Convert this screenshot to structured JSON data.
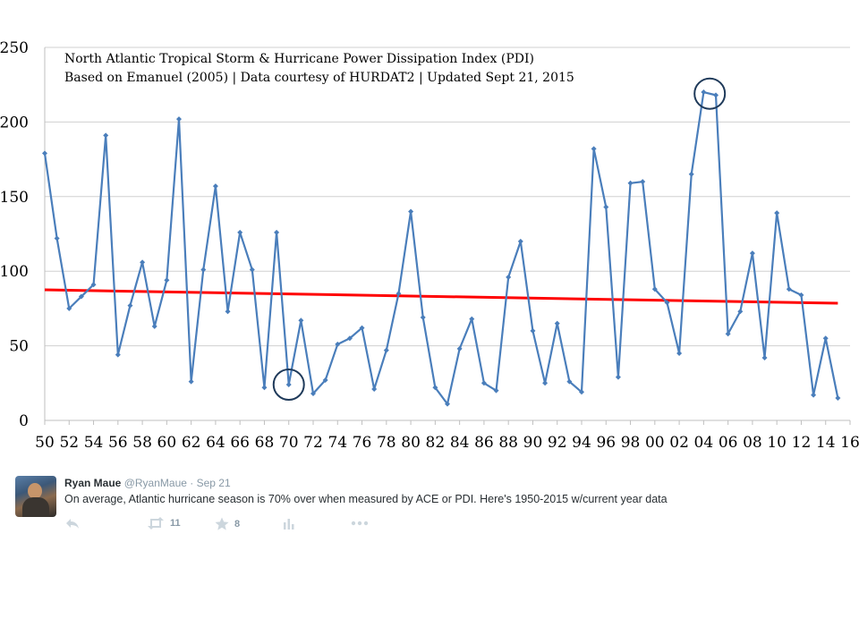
{
  "chart_data": {
    "type": "line",
    "title": "North Atlantic Tropical Storm & Hurricane Power Dissipation Index (PDI)",
    "subtitle": "Based on Emanuel (2005)  |  Data courtesy of HURDAT2 | Updated Sept 21, 2015",
    "xlabel": "",
    "ylabel": "",
    "ylim": [
      0,
      250
    ],
    "yticks": [
      0,
      50,
      100,
      150,
      200,
      250
    ],
    "xlim": [
      1950,
      2016
    ],
    "xtick_values": [
      1950,
      1952,
      1954,
      1956,
      1958,
      1960,
      1962,
      1964,
      1966,
      1968,
      1970,
      1972,
      1974,
      1976,
      1978,
      1980,
      1982,
      1984,
      1986,
      1988,
      1990,
      1992,
      1994,
      1996,
      1998,
      2000,
      2002,
      2004,
      2006,
      2008,
      2010,
      2012,
      2014,
      2016
    ],
    "xtick_labels": [
      "50",
      "52",
      "54",
      "56",
      "58",
      "60",
      "62",
      "64",
      "66",
      "68",
      "70",
      "72",
      "74",
      "76",
      "78",
      "80",
      "82",
      "84",
      "86",
      "88",
      "90",
      "92",
      "94",
      "96",
      "98",
      "00",
      "02",
      "04",
      "06",
      "08",
      "10",
      "12",
      "14",
      "16"
    ],
    "grid": "horizontal",
    "legend": "none",
    "series": [
      {
        "color": "#4a7ebb",
        "x": [
          1950,
          1951,
          1952,
          1953,
          1954,
          1955,
          1956,
          1957,
          1958,
          1959,
          1960,
          1961,
          1962,
          1963,
          1964,
          1965,
          1966,
          1967,
          1968,
          1969,
          1970,
          1971,
          1972,
          1973,
          1974,
          1975,
          1976,
          1977,
          1978,
          1979,
          1980,
          1981,
          1982,
          1983,
          1984,
          1985,
          1986,
          1987,
          1988,
          1989,
          1990,
          1991,
          1992,
          1993,
          1994,
          1995,
          1996,
          1997,
          1998,
          1999,
          2000,
          2001,
          2002,
          2003,
          2004,
          2005,
          2006,
          2007,
          2008,
          2009,
          2010,
          2011,
          2012,
          2013,
          2014,
          2015
        ],
        "values": [
          179,
          122,
          75,
          83,
          91,
          191,
          44,
          77,
          106,
          63,
          94,
          202,
          26,
          101,
          157,
          73,
          126,
          101,
          22,
          126,
          24,
          67,
          18,
          27,
          51,
          55,
          62,
          21,
          47,
          85,
          140,
          69,
          22,
          11,
          48,
          68,
          25,
          20,
          96,
          120,
          60,
          25,
          65,
          26,
          19,
          182,
          143,
          29,
          159,
          160,
          88,
          79,
          45,
          165,
          220,
          218,
          58,
          73,
          112,
          42,
          139,
          88,
          84,
          17,
          55,
          15
        ]
      }
    ],
    "trendline": {
      "color": "#ff0000",
      "x": [
        1950,
        2015
      ],
      "values": [
        87.5,
        78.5
      ]
    },
    "annotations": [
      {
        "shape": "circle",
        "around_year": 1970
      },
      {
        "shape": "circle",
        "around_year": 2004.5
      }
    ]
  },
  "tweet": {
    "name": "Ryan Maue",
    "handle": "@RyanMaue",
    "separator": "·",
    "date": "Sep 21",
    "text": "On average, Atlantic hurricane season is 70% over when measured by ACE or PDI.  Here's 1950-2015 w/current year data",
    "retweets": "11",
    "favorites": "8",
    "icons": [
      "reply-icon",
      "retweet-icon",
      "favorite-icon",
      "analytics-icon",
      "more-icon"
    ]
  }
}
